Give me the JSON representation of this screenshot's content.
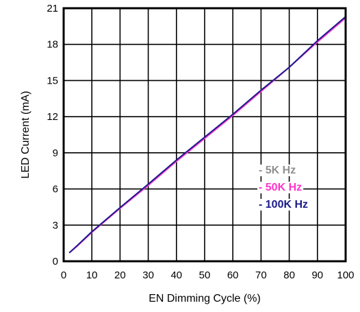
{
  "chart_data": {
    "type": "line",
    "title": "",
    "xlabel": "EN Dimming Cycle (%)",
    "ylabel": "LED Current (mA)",
    "xlim": [
      0,
      100
    ],
    "ylim": [
      0,
      21
    ],
    "xticks": [
      0,
      10,
      20,
      30,
      40,
      50,
      60,
      70,
      80,
      90,
      100
    ],
    "yticks": [
      0,
      3,
      6,
      9,
      12,
      15,
      18,
      21
    ],
    "x_tick_labels": [
      "0",
      "10",
      "20",
      "30",
      "40",
      "50",
      "60",
      "70",
      "80",
      "90",
      "100"
    ],
    "y_tick_labels": [
      "0",
      "3",
      "6",
      "9",
      "12",
      "15",
      "18",
      "21"
    ],
    "grid": true,
    "legend_position": "bottom-right",
    "series": [
      {
        "name": "5K Hz",
        "legend_label": "- 5K Hz",
        "color": "#909090",
        "x": [
          2,
          5,
          10,
          20,
          30,
          40,
          50,
          60,
          70,
          80,
          90,
          100
        ],
        "y": [
          0.7,
          1.3,
          2.4,
          4.4,
          6.3,
          8.3,
          10.2,
          12.1,
          14.1,
          16.1,
          18.2,
          20.2
        ]
      },
      {
        "name": "50K Hz",
        "legend_label": "- 50K Hz",
        "color": "#ff33cc",
        "x": [
          2,
          5,
          10,
          20,
          30,
          40,
          50,
          60,
          70,
          80,
          90,
          100
        ],
        "y": [
          0.7,
          1.3,
          2.4,
          4.4,
          6.3,
          8.3,
          10.2,
          12.1,
          14.1,
          16.1,
          18.2,
          20.2
        ]
      },
      {
        "name": "100K Hz",
        "legend_label": "- 100K Hz",
        "color": "#1a1a8c",
        "x": [
          2,
          5,
          10,
          20,
          30,
          40,
          50,
          60,
          70,
          80,
          90,
          100
        ],
        "y": [
          0.7,
          1.35,
          2.45,
          4.45,
          6.4,
          8.4,
          10.3,
          12.2,
          14.2,
          16.1,
          18.3,
          20.3
        ]
      }
    ]
  }
}
